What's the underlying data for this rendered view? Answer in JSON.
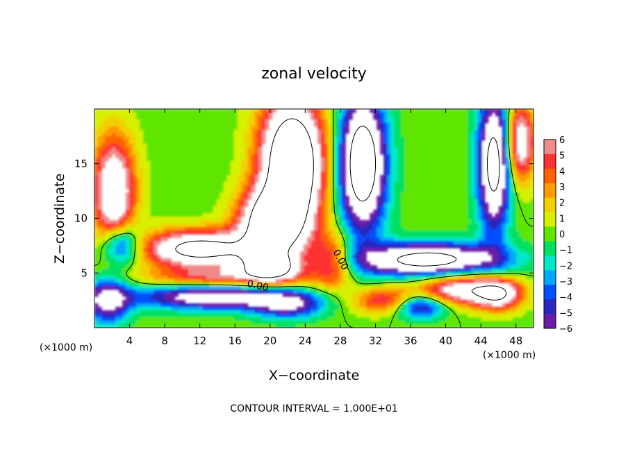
{
  "chart_data": {
    "type": "heatmap",
    "title": "zonal velocity",
    "xlabel": "X−coordinate",
    "ylabel": "Z−coordinate",
    "x_unit": "(×1000 m)",
    "y_unit": "(×1000 m)",
    "xlim": [
      0,
      50
    ],
    "ylim": [
      0,
      20
    ],
    "x_ticks": [
      4,
      8,
      12,
      16,
      20,
      24,
      28,
      32,
      36,
      40,
      44,
      48
    ],
    "y_ticks": [
      5,
      10,
      15
    ],
    "footer": "CONTOUR INTERVAL = 1.000E+01",
    "colorbar": {
      "levels": [
        6,
        5,
        4,
        3,
        2,
        1,
        0,
        -1,
        -2,
        -3,
        -4,
        -5,
        -6
      ],
      "labels": [
        "6",
        "5",
        "4",
        "3",
        "2",
        "1",
        "0",
        "−1",
        "−2",
        "−3",
        "−4",
        "−5",
        "−6"
      ],
      "colors": [
        "#f08a8a",
        "#ff3030",
        "#ff6000",
        "#ff9a00",
        "#f2d000",
        "#d6f000",
        "#5ee600",
        "#00e060",
        "#00e8c8",
        "#00a8ff",
        "#0050ff",
        "#2828c0",
        "#6a1aa8"
      ]
    },
    "contour_labels": [
      {
        "text": "0.00",
        "x": 18.6,
        "z": 3.8,
        "angle": 12
      },
      {
        "text": "0.00",
        "x": 28.0,
        "z": 6.2,
        "angle": 62
      }
    ]
  }
}
